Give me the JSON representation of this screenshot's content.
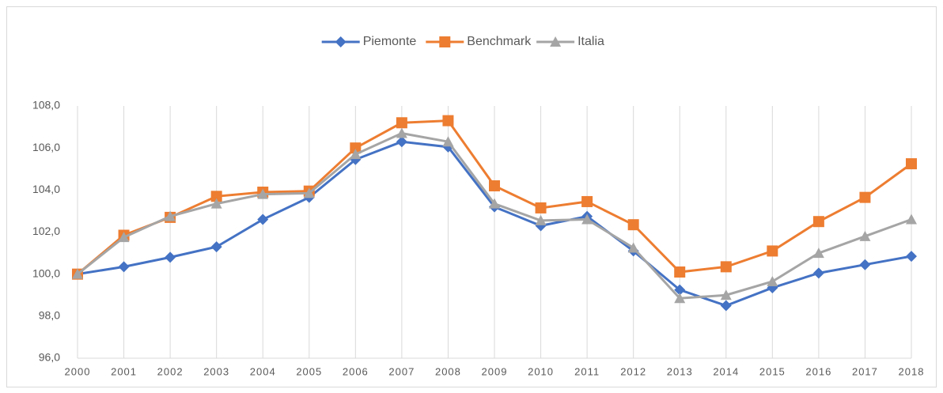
{
  "chart_data": {
    "type": "line",
    "categories": [
      "2000",
      "2001",
      "2002",
      "2003",
      "2004",
      "2005",
      "2006",
      "2007",
      "2008",
      "2009",
      "2010",
      "2011",
      "2012",
      "2013",
      "2014",
      "2015",
      "2016",
      "2017",
      "2018"
    ],
    "series": [
      {
        "name": "Piemonte",
        "color": "#4472c4",
        "marker": "diamond",
        "values": [
          100.0,
          100.35,
          100.8,
          101.3,
          102.6,
          103.65,
          105.45,
          106.3,
          106.05,
          103.2,
          102.3,
          102.75,
          101.1,
          99.25,
          98.5,
          99.35,
          100.05,
          100.45,
          100.85
        ]
      },
      {
        "name": "Benchmark",
        "color": "#ed7d31",
        "marker": "square",
        "values": [
          100.0,
          101.85,
          102.7,
          103.7,
          103.9,
          103.95,
          106.0,
          107.2,
          107.3,
          104.2,
          103.15,
          103.45,
          102.35,
          100.1,
          100.35,
          101.1,
          102.5,
          103.65,
          105.25
        ]
      },
      {
        "name": "Italia",
        "color": "#a5a5a5",
        "marker": "triangle",
        "values": [
          100.0,
          101.75,
          102.75,
          103.35,
          103.8,
          103.85,
          105.7,
          106.7,
          106.3,
          103.35,
          102.55,
          102.6,
          101.25,
          98.85,
          99.0,
          99.65,
          101.0,
          101.8,
          102.6
        ]
      }
    ],
    "ylim": [
      96,
      108
    ],
    "yticks": [
      {
        "value": 96,
        "label": "96,0"
      },
      {
        "value": 98,
        "label": "98,0"
      },
      {
        "value": 100,
        "label": "100,0"
      },
      {
        "value": 102,
        "label": "102,0"
      },
      {
        "value": 104,
        "label": "104,0"
      },
      {
        "value": 106,
        "label": "106,0"
      },
      {
        "value": 108,
        "label": "108,0"
      }
    ],
    "xgrid": true,
    "legend": "top"
  }
}
